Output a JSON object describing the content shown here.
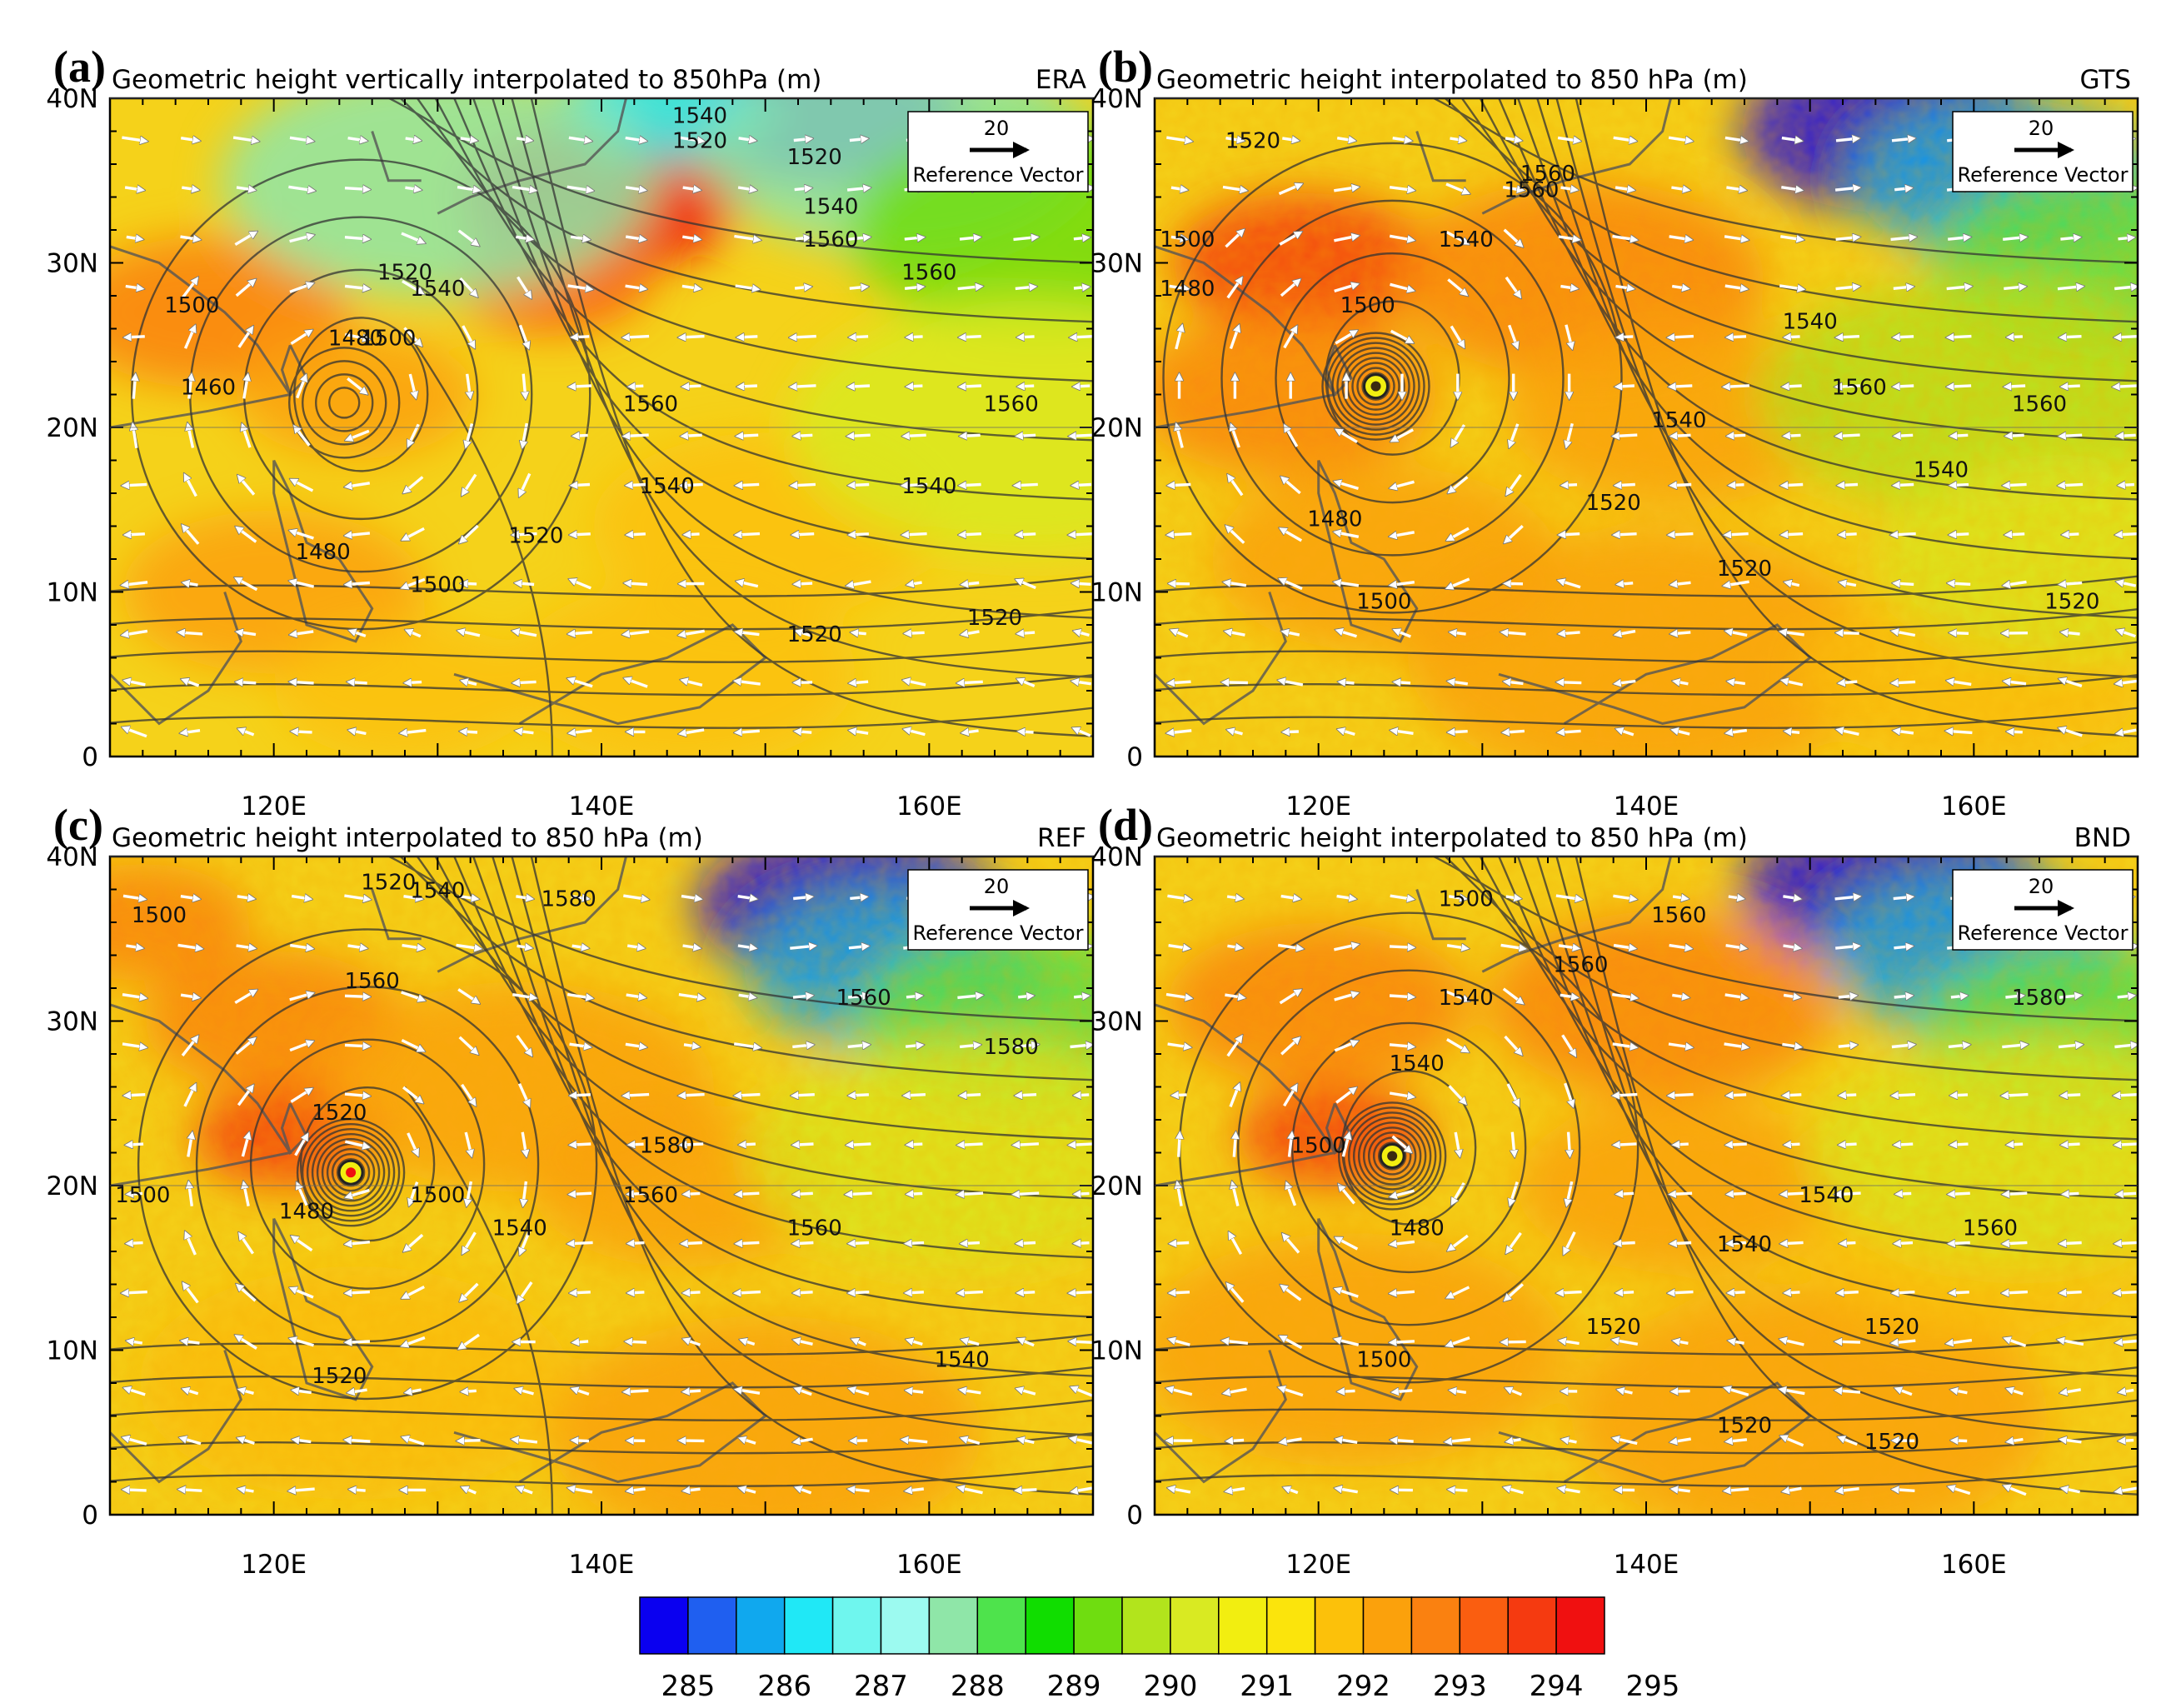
{
  "panels": [
    {
      "label": "(a)",
      "title": "Geometric height vertically interpolated to 850hPa (m)",
      "tag": "ERA",
      "contour_labels": [
        "1520",
        "1540",
        "1520",
        "1540",
        "1560",
        "1560",
        "1520",
        "1540",
        "1500",
        "1480",
        "1460",
        "1500",
        "1560",
        "1560",
        "1540",
        "1540",
        "1520",
        "1480",
        "1500",
        "1520",
        "1520"
      ]
    },
    {
      "label": "(b)",
      "title": "Geometric height interpolated to 850 hPa (m)",
      "tag": "GTS",
      "contour_labels": [
        "1500",
        "1520",
        "1560",
        "1540",
        "1560",
        "1480",
        "1540",
        "1500",
        "1560",
        "1560",
        "1540",
        "1540",
        "1520",
        "1480",
        "1500",
        "1520",
        "1520"
      ]
    },
    {
      "label": "(c)",
      "title": "Geometric height interpolated to 850 hPa (m)",
      "tag": "REF",
      "contour_labels": [
        "1520",
        "1540",
        "1500",
        "1580",
        "1560",
        "1560",
        "1580",
        "1520",
        "1500",
        "1500",
        "1580",
        "1560",
        "1560",
        "1540",
        "1480",
        "1520",
        "1540"
      ]
    },
    {
      "label": "(d)",
      "title": "Geometric height interpolated to 850 hPa (m)",
      "tag": "BND",
      "contour_labels": [
        "1500",
        "1560",
        "1540",
        "1560",
        "1580",
        "1500",
        "1540",
        "1560",
        "1540",
        "1480",
        "1540",
        "1500",
        "1520",
        "1520",
        "1520",
        "1520"
      ]
    }
  ],
  "reference_vector": {
    "value": "20",
    "label": "Reference Vector"
  },
  "axes": {
    "x_ticks": [
      "120E",
      "140E",
      "160E"
    ],
    "y_ticks": [
      "0",
      "10N",
      "20N",
      "30N",
      "40N"
    ]
  },
  "colorbar": {
    "labels": [
      "285",
      "286",
      "287",
      "288",
      "289",
      "290",
      "291",
      "292",
      "293",
      "294",
      "295"
    ],
    "colors": [
      "#0a00f0",
      "#1f5ff0",
      "#10a8ee",
      "#20e8f6",
      "#6ff6ee",
      "#9cfaf0",
      "#8fe6a8",
      "#4ee34c",
      "#10dd00",
      "#6fdd10",
      "#b2e41c",
      "#d9ea22",
      "#f2ee10",
      "#fbe40c",
      "#fcc10a",
      "#fba10c",
      "#fa8110",
      "#fa5e10",
      "#f53a10",
      "#f01010"
    ]
  },
  "chart_data": [
    {
      "type": "heatmap",
      "panel": "a",
      "dataset": "ERA",
      "title": "Geometric height vertically interpolated to 850hPa (m)",
      "xlim": [
        110,
        170
      ],
      "ylim": [
        0,
        40
      ],
      "fill": "temperature (colorbar 285–295)",
      "contour_levels_labeled": [
        1460,
        1480,
        1500,
        1520,
        1540,
        1560
      ],
      "typhoon_center": {
        "lon": 124.3,
        "lat": 21.5
      },
      "warm_max": {
        "lon": 140,
        "lat": 34,
        "value": 295
      },
      "cold_min": {
        "lon": 154,
        "lat": 39,
        "value": 285
      }
    },
    {
      "type": "heatmap",
      "panel": "b",
      "dataset": "GTS",
      "title": "Geometric height interpolated to 850 hPa (m)",
      "xlim": [
        110,
        170
      ],
      "ylim": [
        0,
        40
      ],
      "contour_levels_labeled": [
        1480,
        1500,
        1520,
        1540,
        1560
      ],
      "typhoon_center": {
        "lon": 123.5,
        "lat": 22.5
      },
      "cold_min": {
        "lon": 155,
        "lat": 37,
        "value": 285
      }
    },
    {
      "type": "heatmap",
      "panel": "c",
      "dataset": "REF",
      "title": "Geometric height interpolated to 850 hPa (m)",
      "xlim": [
        110,
        170
      ],
      "ylim": [
        0,
        40
      ],
      "contour_levels_labeled": [
        1480,
        1500,
        1520,
        1540,
        1560,
        1580
      ],
      "typhoon_center": {
        "lon": 124.7,
        "lat": 20.8
      },
      "cold_min": {
        "lon": 155,
        "lat": 34,
        "value": 285
      }
    },
    {
      "type": "heatmap",
      "panel": "d",
      "dataset": "BND",
      "title": "Geometric height interpolated to 850 hPa (m)",
      "xlim": [
        110,
        170
      ],
      "ylim": [
        0,
        40
      ],
      "contour_levels_labeled": [
        1480,
        1500,
        1520,
        1540,
        1560,
        1580
      ],
      "typhoon_center": {
        "lon": 124.5,
        "lat": 21.8
      },
      "cold_min": {
        "lon": 155,
        "lat": 37,
        "value": 285
      }
    }
  ]
}
